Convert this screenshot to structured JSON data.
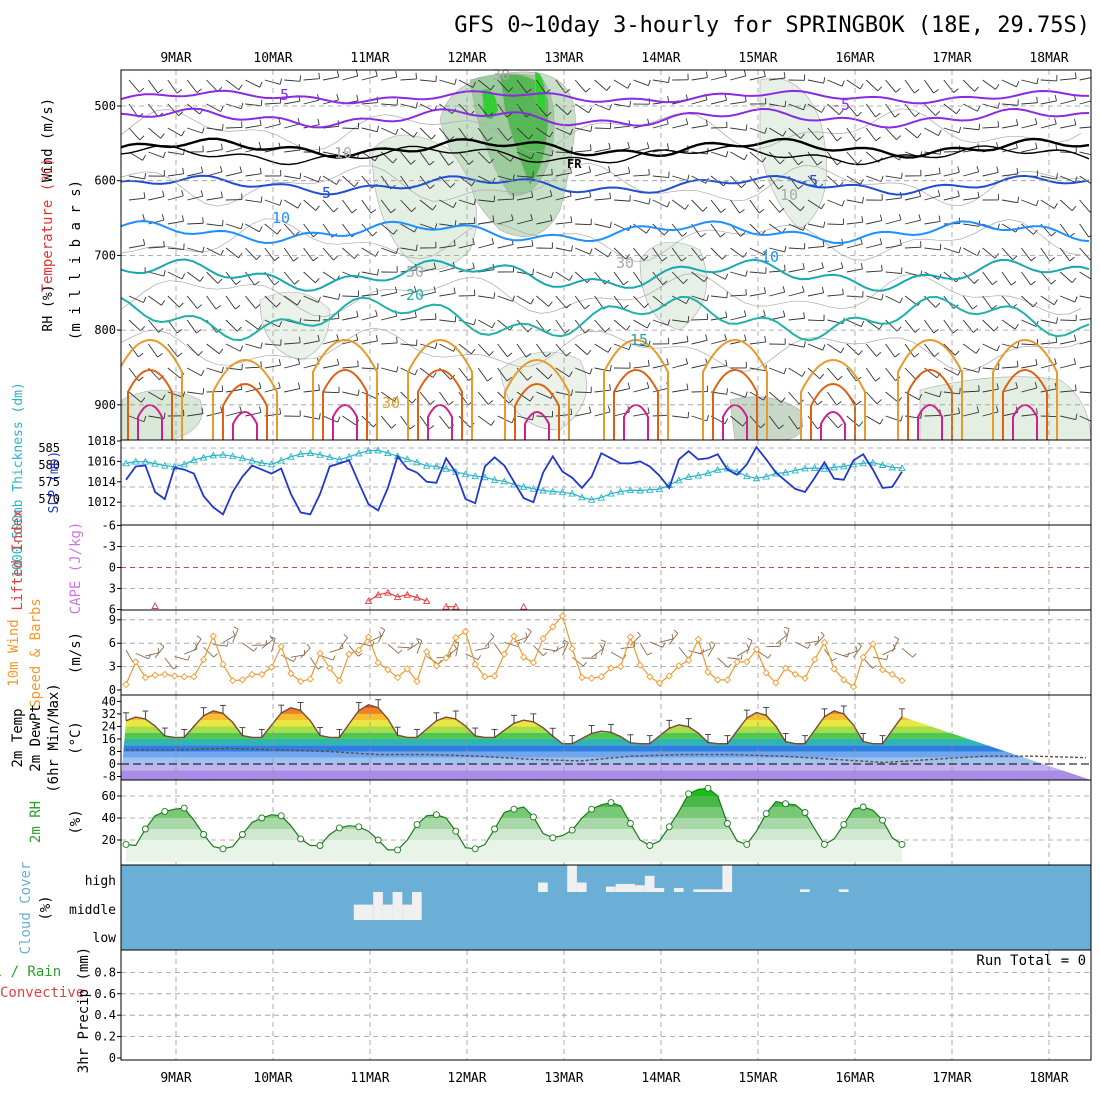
{
  "title": "GFS 0~10day 3-hourly for SPRINGBOK (18E, 29.75S)",
  "colors": {
    "purple": "#8a2be2",
    "blue": "#1f4fd1",
    "skyblue": "#1e90ff",
    "teal": "#20b2aa",
    "green": "#3cb371",
    "orange": "#e89a2c",
    "darkorange": "#e06010",
    "magenta": "#d0208a",
    "slp": "#2238c8",
    "thick": "#28b4c8",
    "wind": "#f09a30",
    "cape": "#cc77dd",
    "li": "#e04040",
    "cloudbg": "#6baed6",
    "rh": "#2ca02c"
  },
  "chart_data": [
    {
      "panel": "upper-air",
      "type": "contour",
      "ylabel_rh": "RH (%)",
      "ylabel_temp": "Temperature (°C)",
      "ylabel_wind": "Wind (m/s)",
      "ylabel_units": "(m i l l i b a r s)",
      "yticks": [
        "500",
        "600",
        "700",
        "800",
        "900"
      ],
      "levels_hpa": [
        500,
        600,
        700,
        800,
        900
      ],
      "contour_labels": [
        "5",
        "-5",
        "FR",
        "5",
        "-5",
        "10",
        "-10",
        "20",
        "15",
        "10",
        "30",
        "30",
        "50",
        "10",
        "30"
      ],
      "isotherms_c": [
        -5,
        0,
        5,
        10,
        15,
        20,
        25,
        30
      ]
    },
    {
      "panel": "slp-thickness",
      "type": "line",
      "ylabel_left": "1000-500mb Thickness (dm)",
      "ylabel_right": "SLP (mb)",
      "thickness_ticks": [
        "585",
        "580",
        "575",
        "570"
      ],
      "slp_ticks": [
        "1018",
        "1016",
        "1014",
        "1012"
      ],
      "slp_range": [
        1010.5,
        1018
      ],
      "thickness_range": [
        568,
        587
      ],
      "slp": [
        1014.2,
        1015.5,
        1015.6,
        1013.0,
        1012.3,
        1015.4,
        1015.2,
        1014.8,
        1012.6,
        1011.5,
        1010.8,
        1013.0,
        1014.5,
        1015.6,
        1015.2,
        1014.8,
        1015.3,
        1012.8,
        1011.0,
        1010.8,
        1012.8,
        1015.5,
        1015.8,
        1016.1,
        1013.9,
        1011.8,
        1011.2,
        1013.4,
        1016.5,
        1015.3,
        1014.9,
        1014.0,
        1013.9,
        1016.3,
        1014.9,
        1012.3,
        1011.9,
        1015.5,
        1016.4,
        1015.6,
        1014.0,
        1012.4,
        1012.0,
        1014.9,
        1016.5,
        1015.0,
        1014.4,
        1013.4,
        1014.5,
        1016.8,
        1016.3,
        1015.8,
        1015.8,
        1016.0,
        1015.5,
        1014.6,
        1013.4,
        1016.2,
        1017.0,
        1016.2,
        1016.3,
        1016.7,
        1015.2,
        1014.7,
        1015.7,
        1017.4,
        1016.2,
        1014.9,
        1014.1,
        1013.3,
        1013.0,
        1014.4,
        1015.9,
        1014.3,
        1014.2,
        1016.1,
        1016.7,
        1015.2,
        1013.4,
        1013.5,
        1015.0
      ],
      "thickness": [
        580.5,
        581.0,
        581.0,
        580.4,
        579.8,
        579.5,
        580.2,
        581.5,
        582.2,
        582.8,
        583.0,
        582.6,
        582.0,
        581.3,
        580.6,
        580.2,
        581.3,
        582.4,
        583.2,
        583.5,
        583.0,
        582.3,
        581.6,
        582.4,
        583.4,
        584.2,
        584.3,
        583.5,
        582.6,
        581.7,
        580.8,
        579.8,
        579.6,
        578.9,
        578.0,
        577.3,
        576.7,
        576.4,
        575.6,
        575.2,
        574.3,
        573.6,
        573.0,
        572.5,
        572.2,
        572.0,
        571.6,
        570.5,
        569.8,
        570.4,
        571.6,
        572.2,
        572.6,
        572.5,
        572.7,
        572.9,
        574.1,
        575.5,
        576.5,
        576.9,
        577.6,
        578.6,
        579.0,
        578.0,
        576.7,
        576.1,
        576.6,
        577.5,
        577.8,
        578.4,
        579.0,
        579.1,
        578.9,
        579.3,
        579.6,
        580.2,
        580.5,
        580.7,
        580.0,
        579.3,
        579.1
      ]
    },
    {
      "panel": "lifted-index-cape",
      "type": "line",
      "ylabel_left": "Lifted Index",
      "ylabel_right": "CAPE (J/kg)",
      "yticks": [
        "-6",
        "-3",
        "0",
        "3",
        "6"
      ],
      "ylim": [
        6,
        -6
      ],
      "lifted_index": [
        {
          "x": 3,
          "y": 5.5
        },
        {
          "x": 25,
          "y": 4.8
        },
        {
          "x": 26,
          "y": 3.9
        },
        {
          "x": 27,
          "y": 3.6
        },
        {
          "x": 28,
          "y": 4.2
        },
        {
          "x": 29,
          "y": 3.9
        },
        {
          "x": 30,
          "y": 4.3
        },
        {
          "x": 31,
          "y": 4.8
        },
        {
          "x": 33,
          "y": 5.6
        },
        {
          "x": 34,
          "y": 5.6
        },
        {
          "x": 41,
          "y": 5.6
        }
      ]
    },
    {
      "panel": "10m-wind",
      "type": "line",
      "ylabel_left": "10m Wind",
      "ylabel_mid": "Speed & Barbs",
      "ylabel_units": "(m/s)",
      "yticks": [
        "9",
        "6",
        "3",
        "0"
      ],
      "ylim": [
        0,
        10
      ],
      "speed": [
        0.7,
        3.6,
        1.6,
        1.9,
        2.0,
        1.8,
        1.7,
        1.7,
        3.9,
        6.9,
        3.3,
        1.2,
        1.3,
        2.0,
        2.0,
        2.9,
        5.6,
        2.1,
        1.1,
        1.4,
        4.7,
        2.8,
        1.2,
        4.6,
        5.1,
        6.8,
        3.5,
        2.6,
        1.6,
        2.7,
        1.1,
        4.9,
        3.1,
        4.1,
        6.7,
        7.5,
        3.3,
        1.7,
        1.8,
        4.6,
        6.9,
        4.2,
        3.5,
        6.6,
        8.1,
        9.5,
        5.3,
        1.6,
        1.5,
        1.7,
        2.8,
        3.0,
        6.8,
        3.2,
        1.7,
        0.9,
        1.8,
        3.1,
        3.8,
        6.5,
        2.3,
        1.3,
        1.3,
        3.6,
        3.6,
        5.2,
        2.2,
        0.9,
        2.8,
        2.0,
        1.5,
        3.9,
        6.1,
        2.7,
        1.3,
        0.4,
        4.2,
        5.9,
        2.6,
        2.0,
        1.2
      ]
    },
    {
      "panel": "2m-temp",
      "type": "area",
      "ylabel": "2m Temp",
      "ylabel2": "2m DewPt",
      "ylabel3": "(6hr Min/Max)",
      "ylabel_units": "(°C)",
      "yticks": [
        "40",
        "32",
        "24",
        "16",
        "8",
        "0",
        "-8"
      ],
      "ylim": [
        -10,
        42
      ],
      "temp_max_days": [
        30,
        34,
        36,
        38,
        30,
        28,
        21,
        25,
        33,
        34
      ],
      "dewpt": [
        9,
        9,
        10,
        9,
        8,
        6,
        6,
        5,
        3,
        2,
        5,
        6,
        6,
        5,
        3,
        1,
        3,
        5,
        5,
        4
      ]
    },
    {
      "panel": "2m-rh",
      "type": "area",
      "ylabel": "2m RH",
      "ylabel_units": "(%)",
      "yticks": [
        "60",
        "40",
        "20"
      ],
      "ylim": [
        0,
        72
      ],
      "rh": [
        16,
        15,
        30,
        42,
        46,
        48,
        49,
        38,
        25,
        14,
        12,
        14,
        25,
        36,
        40,
        43,
        42,
        33,
        21,
        15,
        15,
        25,
        31,
        33,
        32,
        28,
        20,
        11,
        11,
        20,
        34,
        42,
        43,
        40,
        28,
        13,
        12,
        16,
        30,
        45,
        48,
        50,
        41,
        26,
        22,
        24,
        29,
        40,
        48,
        52,
        54,
        51,
        35,
        20,
        15,
        19,
        32,
        46,
        62,
        66,
        67,
        60,
        35,
        19,
        16,
        28,
        44,
        55,
        53,
        52,
        45,
        30,
        16,
        21,
        34,
        48,
        50,
        47,
        38,
        22,
        16
      ]
    },
    {
      "panel": "cloud-cover",
      "type": "bar",
      "ylabel": "Cloud Cover",
      "ylabel_units": "(%)",
      "yticks": [
        "high",
        "middle",
        "low"
      ],
      "middle_cloud": [
        {
          "x": 24,
          "v": 0.55
        },
        {
          "x": 25,
          "v": 0.55
        },
        {
          "x": 26,
          "v": 1.0
        },
        {
          "x": 27,
          "v": 0.55
        },
        {
          "x": 28,
          "v": 1.0
        },
        {
          "x": 29,
          "v": 0.55
        },
        {
          "x": 30,
          "v": 1.0
        }
      ],
      "high_cloud": [
        {
          "x": 43,
          "v": 0.35
        },
        {
          "x": 46,
          "v": 1.0
        },
        {
          "x": 47,
          "v": 0.35
        },
        {
          "x": 50,
          "v": 0.2
        },
        {
          "x": 51,
          "v": 0.3
        },
        {
          "x": 52,
          "v": 0.3
        },
        {
          "x": 53,
          "v": 0.25
        },
        {
          "x": 54,
          "v": 0.6
        },
        {
          "x": 55,
          "v": 0.15
        },
        {
          "x": 57,
          "v": 0.15
        },
        {
          "x": 59,
          "v": 0.1
        },
        {
          "x": 60,
          "v": 0.1
        },
        {
          "x": 61,
          "v": 0.1
        },
        {
          "x": 62,
          "v": 1.0
        },
        {
          "x": 70,
          "v": 0.1
        },
        {
          "x": 74,
          "v": 0.1
        }
      ]
    },
    {
      "panel": "precip",
      "type": "bar",
      "ylabel": "3hr Precip (mm)",
      "ylabel_total": "Total / Rain",
      "ylabel_conv": "Convective",
      "run_total": "Run Total = 0",
      "yticks": [
        "0.8",
        "0.6",
        "0.4",
        "0.2",
        "0"
      ],
      "ylim": [
        0,
        0.9
      ],
      "values": []
    }
  ],
  "x_axis": {
    "days": [
      "9MAR",
      "10MAR",
      "11MAR",
      "12MAR",
      "13MAR",
      "14MAR",
      "15MAR",
      "16MAR",
      "17MAR",
      "18MAR"
    ]
  }
}
